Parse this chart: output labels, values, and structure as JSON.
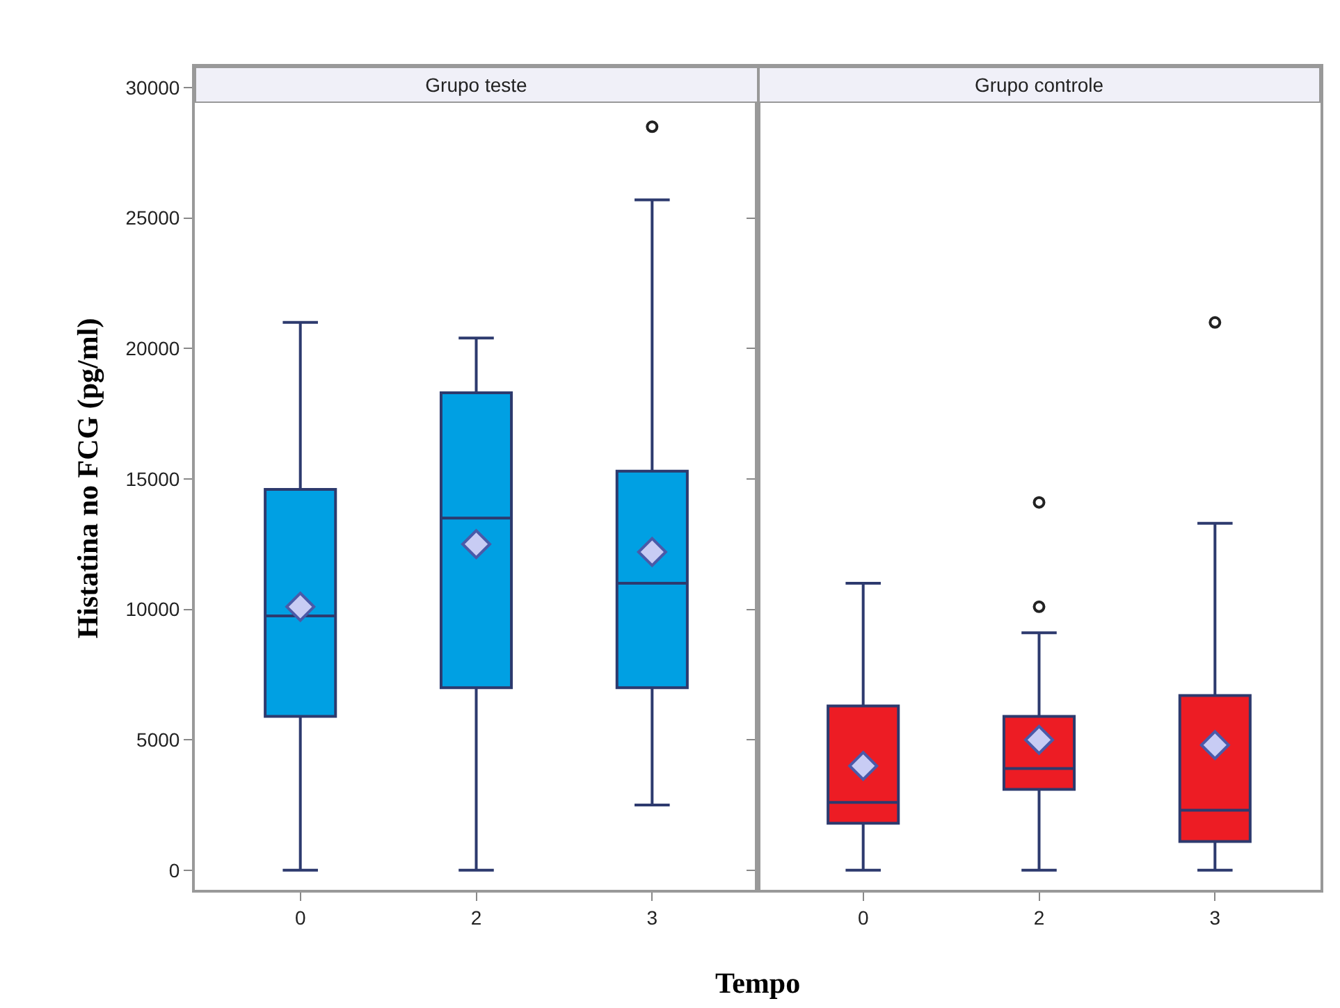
{
  "chart_data": [
    {
      "type": "box",
      "title": "Grupo teste",
      "xlabel": "Tempo",
      "ylabel": "Histatina no FCG (pg/ml)",
      "categories": [
        "0",
        "2",
        "3"
      ],
      "ylim": [
        -750,
        30800
      ],
      "yticks": [
        0,
        5000,
        10000,
        15000,
        20000,
        25000,
        30000
      ],
      "series": [
        {
          "color": "#00a0e3",
          "boxes": [
            {
              "low": 0,
              "q1": 5900,
              "median": 9750,
              "q3": 14600,
              "high": 21000,
              "mean": 10100
            },
            {
              "low": 0,
              "q1": 7000,
              "median": 13500,
              "q3": 18300,
              "high": 20400,
              "mean": 12500
            },
            {
              "low": 2500,
              "q1": 7000,
              "median": 11000,
              "q3": 15300,
              "high": 25700,
              "mean": 12200,
              "outliers": [
                28500
              ]
            }
          ]
        }
      ]
    },
    {
      "type": "box",
      "title": "Grupo controle",
      "categories": [
        "0",
        "2",
        "3"
      ],
      "ylim": [
        -750,
        30800
      ],
      "yticks": [
        0,
        5000,
        10000,
        15000,
        20000,
        25000,
        30000
      ],
      "tick_labels": "x",
      "series": [
        {
          "color": "#ed1c24",
          "boxes": [
            {
              "low": 0,
              "q1": 1800,
              "median": 2600,
              "q3": 6300,
              "high": 11000,
              "mean": 4000
            },
            {
              "low": 0,
              "q1": 3100,
              "median": 3900,
              "q3": 5900,
              "high": 9100,
              "mean": 5000,
              "outliers": [
                10100,
                14100
              ]
            },
            {
              "low": 0,
              "q1": 1100,
              "median": 2300,
              "q3": 6700,
              "high": 13300,
              "mean": 4800,
              "outliers": [
                21000
              ]
            }
          ]
        }
      ]
    }
  ]
}
